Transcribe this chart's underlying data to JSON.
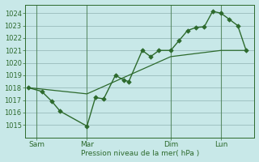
{
  "background_color": "#c8e8e8",
  "grid_color": "#99bbbb",
  "line_color": "#2d6a2d",
  "marker_color": "#2d6a2d",
  "text_color": "#2d6a2d",
  "xlabel": "Pression niveau de la mer( hPa )",
  "ylim": [
    1014.0,
    1024.7
  ],
  "yticks": [
    1015,
    1016,
    1017,
    1018,
    1019,
    1020,
    1021,
    1022,
    1023,
    1024
  ],
  "xtick_labels": [
    "Sam",
    "Mar",
    "Dim",
    "Lun"
  ],
  "xtick_positions": [
    0.5,
    3.5,
    8.5,
    11.5
  ],
  "vline_positions": [
    0.5,
    3.5,
    8.5,
    11.5
  ],
  "series1_x": [
    0.0,
    0.8,
    1.4,
    1.9,
    3.5,
    4.0,
    4.5,
    5.2,
    5.7,
    6.0,
    6.8,
    7.3,
    7.8,
    8.5,
    9.0,
    9.5,
    10.0,
    10.5,
    11.0,
    11.5,
    12.0,
    12.5,
    13.0
  ],
  "series1_y": [
    1018.0,
    1017.7,
    1016.9,
    1016.1,
    1014.9,
    1017.2,
    1017.1,
    1019.0,
    1018.6,
    1018.5,
    1021.0,
    1020.5,
    1021.0,
    1021.0,
    1021.8,
    1022.6,
    1022.85,
    1022.9,
    1024.15,
    1024.0,
    1023.5,
    1023.0,
    1021.0
  ],
  "series2_x": [
    0.0,
    3.5,
    8.5,
    11.5,
    13.0
  ],
  "series2_y": [
    1018.0,
    1017.5,
    1020.5,
    1021.0,
    1021.0
  ],
  "xlim": [
    -0.2,
    13.5
  ],
  "figsize": [
    3.2,
    2.0
  ],
  "dpi": 100
}
